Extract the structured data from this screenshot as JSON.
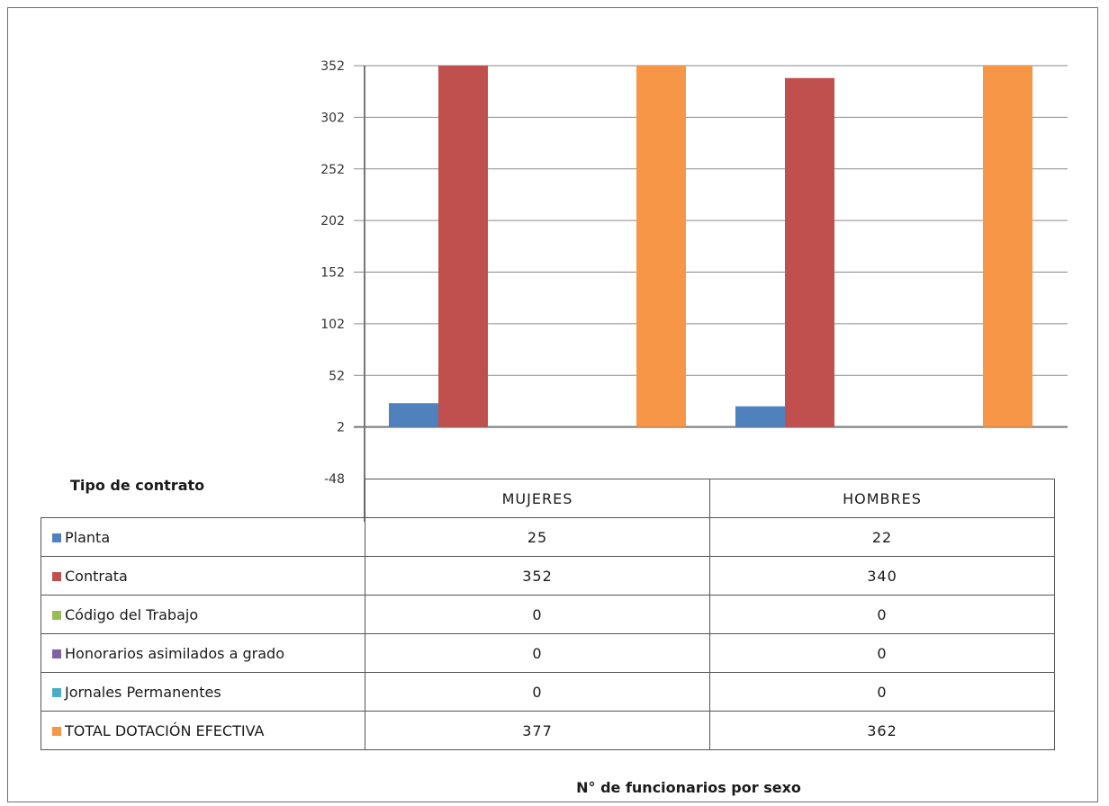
{
  "table": {
    "title": "Tipo de contrato",
    "x_axis_title": "N° de funcionarios por sexo",
    "columns": [
      "MUJERES",
      "HOMBRES"
    ],
    "rows": [
      {
        "label": "Planta",
        "color": "#4f81bd",
        "values": [
          "25",
          "22"
        ]
      },
      {
        "label": "Contrata",
        "color": "#c0504d",
        "values": [
          "352",
          "340"
        ]
      },
      {
        "label": "Código del Trabajo",
        "color": "#9bbb59",
        "values": [
          "0",
          "0"
        ]
      },
      {
        "label": "Honorarios asimilados a grado",
        "color": "#8064a2",
        "values": [
          "0",
          "0"
        ]
      },
      {
        "label": "Jornales Permanentes",
        "color": "#4bacc6",
        "values": [
          "0",
          "0"
        ]
      },
      {
        "label": "TOTAL DOTACIÓN EFECTIVA",
        "color": "#f79646",
        "values": [
          "377",
          "362"
        ]
      }
    ]
  },
  "chart_data": {
    "type": "bar",
    "categories": [
      "MUJERES",
      "HOMBRES"
    ],
    "series": [
      {
        "name": "Planta",
        "color": "#4f81bd",
        "values": [
          25,
          22
        ]
      },
      {
        "name": "Contrata",
        "color": "#c0504d",
        "values": [
          352,
          340
        ]
      },
      {
        "name": "Código del Trabajo",
        "color": "#9bbb59",
        "values": [
          0,
          0
        ]
      },
      {
        "name": "Honorarios asimilados a grado",
        "color": "#8064a2",
        "values": [
          0,
          0
        ]
      },
      {
        "name": "Jornales Permanentes",
        "color": "#4bacc6",
        "values": [
          0,
          0
        ]
      },
      {
        "name": "TOTAL DOTACIÓN EFECTIVA",
        "color": "#f79646",
        "values": [
          377,
          362
        ]
      }
    ],
    "ylim": [
      -48,
      352
    ],
    "y_ticks": [
      -48,
      2,
      52,
      102,
      152,
      202,
      252,
      302,
      352
    ],
    "baseline": 2,
    "grid": true,
    "legend": "data table below chart",
    "title": "",
    "xlabel": "N° de funcionarios por sexo",
    "ylabel": ""
  }
}
